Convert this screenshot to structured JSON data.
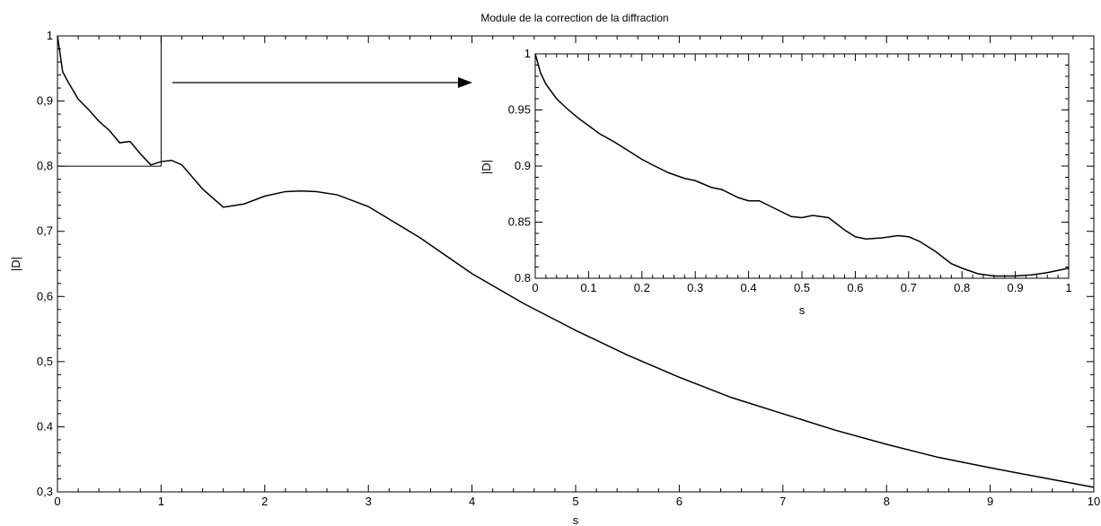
{
  "chart_data": [
    {
      "type": "line",
      "title": "Module de la correction de la diffraction",
      "xlabel": "s",
      "ylabel": "|D|",
      "xlim": [
        0,
        10
      ],
      "ylim": [
        0.3,
        1
      ],
      "grid": false,
      "x_ticks": [
        "0",
        "1",
        "2",
        "3",
        "4",
        "5",
        "6",
        "7",
        "8",
        "9",
        "10"
      ],
      "y_ticks": [
        "0,3",
        "0.4",
        "0,5",
        "0,6",
        "0,7",
        "0,8",
        "0,9",
        "1"
      ],
      "series": [
        {
          "color": "#000000",
          "x": [
            0,
            0.05,
            0.1,
            0.2,
            0.3,
            0.4,
            0.5,
            0.6,
            0.7,
            0.8,
            0.9,
            1.0,
            1.1,
            1.2,
            1.4,
            1.6,
            1.8,
            2.0,
            2.2,
            2.35,
            2.5,
            2.7,
            3.0,
            3.5,
            4.0,
            4.5,
            5.0,
            5.5,
            6.0,
            6.5,
            7.0,
            7.5,
            8.0,
            8.5,
            9.0,
            9.5,
            10.0
          ],
          "y": [
            1.0,
            0.945,
            0.93,
            0.903,
            0.887,
            0.869,
            0.855,
            0.836,
            0.838,
            0.819,
            0.802,
            0.807,
            0.809,
            0.802,
            0.765,
            0.737,
            0.742,
            0.754,
            0.761,
            0.762,
            0.761,
            0.756,
            0.738,
            0.69,
            0.635,
            0.589,
            0.548,
            0.51,
            0.476,
            0.445,
            0.42,
            0.395,
            0.373,
            0.353,
            0.337,
            0.322,
            0.307
          ]
        }
      ],
      "annotations": [
        {
          "type": "rectangle",
          "x_range": [
            0,
            1
          ],
          "y_range": [
            0.8,
            1
          ]
        },
        {
          "type": "arrow",
          "from": "zoom-rectangle",
          "to": "inset"
        }
      ]
    },
    {
      "type": "line",
      "placement": "inset-upper-right",
      "title": "",
      "xlabel": "s",
      "ylabel": "|D|",
      "xlim": [
        0,
        1
      ],
      "ylim": [
        0.8,
        1
      ],
      "grid": false,
      "x_ticks": [
        "0",
        "0.1",
        "0.2",
        "0.3",
        "0.4",
        "0.5",
        "0.6",
        "0.7",
        "0.8",
        "0.9",
        "1"
      ],
      "y_ticks": [
        "0.8",
        "0.85",
        "0.9",
        "0.95",
        "1"
      ],
      "series": [
        {
          "color": "#000000",
          "x": [
            0,
            0.01,
            0.02,
            0.04,
            0.06,
            0.08,
            0.1,
            0.12,
            0.15,
            0.18,
            0.2,
            0.22,
            0.25,
            0.28,
            0.3,
            0.33,
            0.35,
            0.38,
            0.4,
            0.42,
            0.45,
            0.48,
            0.5,
            0.52,
            0.55,
            0.58,
            0.6,
            0.62,
            0.65,
            0.68,
            0.7,
            0.72,
            0.75,
            0.78,
            0.8,
            0.83,
            0.86,
            0.88,
            0.9,
            0.93,
            0.96,
            1.0
          ],
          "y": [
            1.0,
            0.983,
            0.973,
            0.96,
            0.951,
            0.943,
            0.936,
            0.929,
            0.921,
            0.912,
            0.906,
            0.901,
            0.894,
            0.889,
            0.887,
            0.881,
            0.879,
            0.872,
            0.869,
            0.869,
            0.862,
            0.855,
            0.854,
            0.856,
            0.854,
            0.843,
            0.837,
            0.835,
            0.836,
            0.838,
            0.837,
            0.833,
            0.824,
            0.813,
            0.809,
            0.804,
            0.802,
            0.802,
            0.802,
            0.803,
            0.805,
            0.809
          ]
        }
      ]
    }
  ]
}
